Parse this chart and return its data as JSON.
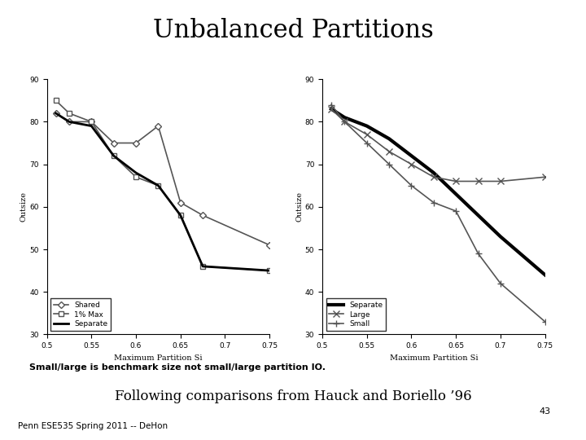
{
  "title": "Unbalanced Partitions",
  "subtitle": "Following comparisons from Hauck and Boriello ’96",
  "subtitle_num": "43",
  "footnote1": "Small/large is benchmark size not small/large partition IO.",
  "footnote2": "Penn ESE535 Spring 2011 -- DeHon",
  "left": {
    "xlabel": "Maximum Partition Si",
    "ylabel": "Outsize",
    "xlim": [
      0.5,
      0.75
    ],
    "ylim": [
      30,
      90
    ],
    "xticks": [
      0.5,
      0.55,
      0.6,
      0.65,
      0.7,
      0.75
    ],
    "yticks": [
      30,
      40,
      50,
      60,
      70,
      80,
      90
    ],
    "series": [
      {
        "label": "Shared",
        "marker": "D",
        "markersize": 4,
        "linewidth": 1.2,
        "color": "#555555",
        "x": [
          0.51,
          0.525,
          0.55,
          0.575,
          0.6,
          0.625,
          0.65,
          0.675,
          0.75
        ],
        "y": [
          82,
          80,
          80,
          75,
          75,
          79,
          61,
          58,
          51
        ]
      },
      {
        "label": "1% Max",
        "marker": "s",
        "markersize": 4,
        "linewidth": 1.2,
        "color": "#555555",
        "x": [
          0.51,
          0.525,
          0.55,
          0.575,
          0.6,
          0.625,
          0.65,
          0.675,
          0.75
        ],
        "y": [
          85,
          82,
          80,
          72,
          67,
          65,
          58,
          46,
          45
        ]
      },
      {
        "label": "Separate",
        "marker": null,
        "markersize": 0,
        "linewidth": 2.0,
        "color": "#000000",
        "x": [
          0.51,
          0.525,
          0.55,
          0.575,
          0.6,
          0.625,
          0.65,
          0.675,
          0.75
        ],
        "y": [
          82,
          80,
          79,
          72,
          68,
          65,
          58,
          46,
          45
        ]
      }
    ]
  },
  "right": {
    "xlabel": "Maximum Partition Si",
    "ylabel": "Outsize",
    "xlim": [
      0.5,
      0.75
    ],
    "ylim": [
      30,
      90
    ],
    "xticks": [
      0.5,
      0.55,
      0.6,
      0.65,
      0.7,
      0.75
    ],
    "yticks": [
      30,
      40,
      50,
      60,
      70,
      80,
      90
    ],
    "series": [
      {
        "label": "Separate",
        "marker": null,
        "markersize": 0,
        "linewidth": 3.0,
        "color": "#000000",
        "x": [
          0.51,
          0.525,
          0.55,
          0.575,
          0.6,
          0.625,
          0.65,
          0.675,
          0.7,
          0.75
        ],
        "y": [
          83,
          81,
          79,
          76,
          72,
          68,
          63,
          58,
          53,
          44
        ]
      },
      {
        "label": "Large",
        "marker": "x",
        "markersize": 6,
        "linewidth": 1.2,
        "color": "#555555",
        "x": [
          0.51,
          0.525,
          0.55,
          0.575,
          0.6,
          0.625,
          0.65,
          0.675,
          0.7,
          0.75
        ],
        "y": [
          83,
          80,
          77,
          73,
          70,
          67,
          66,
          66,
          66,
          67
        ]
      },
      {
        "label": "Small",
        "marker": "+",
        "markersize": 6,
        "linewidth": 1.2,
        "color": "#555555",
        "x": [
          0.51,
          0.525,
          0.55,
          0.575,
          0.6,
          0.625,
          0.65,
          0.675,
          0.7,
          0.75
        ],
        "y": [
          84,
          80,
          75,
          70,
          65,
          61,
          59,
          49,
          42,
          33
        ]
      }
    ]
  }
}
